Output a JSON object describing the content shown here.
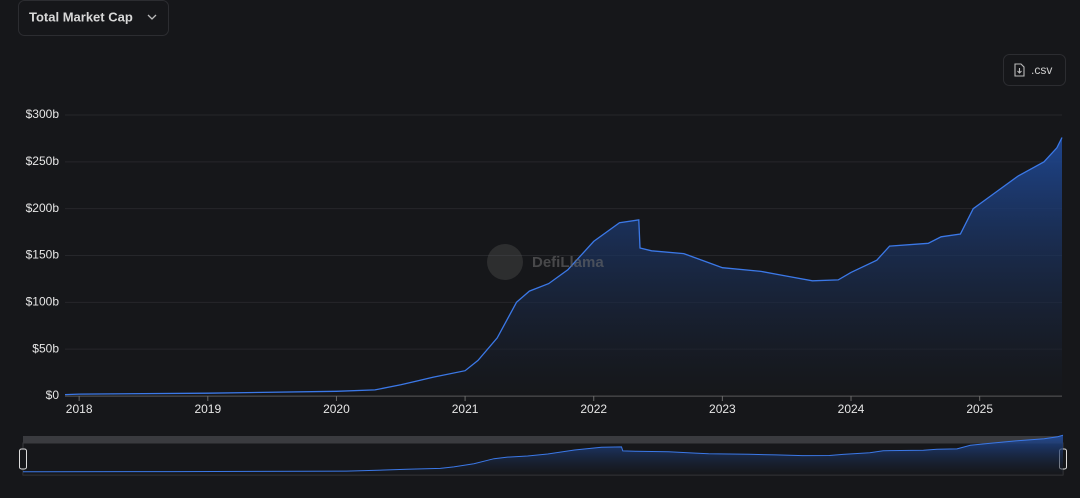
{
  "chart_data": {
    "type": "area",
    "title": "Total Market Cap",
    "download_label": ".csv",
    "watermark": "DefiLlama",
    "x": [
      2017.89,
      2018.0,
      2019.0,
      2020.0,
      2020.3,
      2020.5,
      2020.75,
      2021.0,
      2021.1,
      2021.25,
      2021.4,
      2021.5,
      2021.65,
      2021.8,
      2022.0,
      2022.2,
      2022.35,
      2022.36,
      2022.45,
      2022.7,
      2022.9,
      2023.0,
      2023.3,
      2023.5,
      2023.7,
      2023.9,
      2024.0,
      2024.2,
      2024.3,
      2024.6,
      2024.7,
      2024.85,
      2024.95,
      2025.1,
      2025.3,
      2025.5,
      2025.6,
      2025.64
    ],
    "values": [
      1.5,
      2,
      3,
      5,
      6.5,
      12,
      20,
      27,
      38,
      62,
      100,
      112,
      120,
      135,
      165,
      185,
      188,
      158,
      155,
      152,
      142,
      137,
      133,
      128,
      123,
      124,
      132,
      145,
      160,
      163,
      170,
      173,
      200,
      215,
      235,
      250,
      265,
      276
    ],
    "color": "#3b78e7",
    "xlim": [
      2017.89,
      2025.64
    ],
    "xticks": [
      2018,
      2019,
      2020,
      2021,
      2022,
      2023,
      2024,
      2025
    ],
    "ylim": [
      0,
      300
    ],
    "yticks": [
      {
        "value": 0,
        "label": "$0"
      },
      {
        "value": 50,
        "label": "$50b"
      },
      {
        "value": 100,
        "label": "$100b"
      },
      {
        "value": 150,
        "label": "$150b"
      },
      {
        "value": 200,
        "label": "$200b"
      },
      {
        "value": 250,
        "label": "$250b"
      },
      {
        "value": 300,
        "label": "$300b"
      }
    ],
    "grid": true
  }
}
